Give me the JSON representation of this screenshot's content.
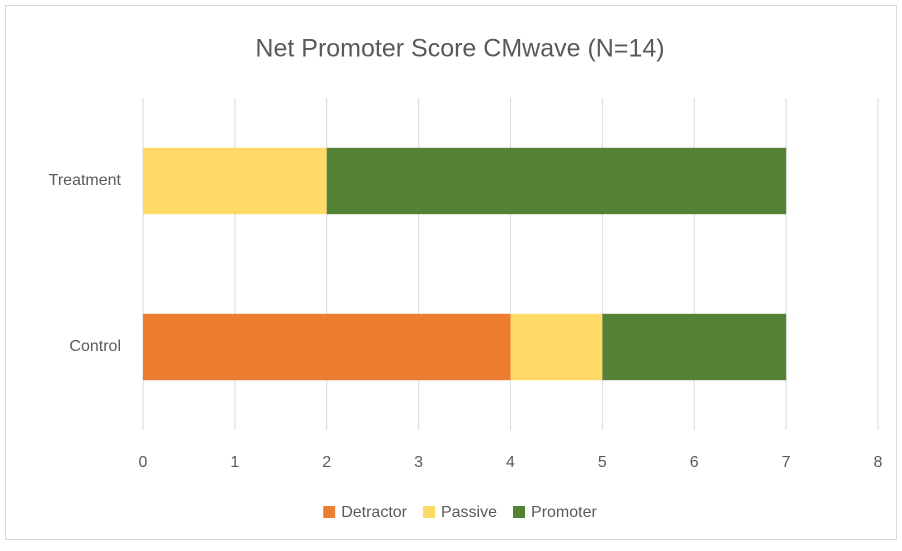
{
  "chart_data": {
    "type": "bar",
    "orientation": "horizontal",
    "stacked": true,
    "title": "Net Promoter Score CMwave (N=14)",
    "categories": [
      "Treatment",
      "Control"
    ],
    "series": [
      {
        "name": "Detractor",
        "color": "#ED7D31",
        "values": [
          0,
          4
        ]
      },
      {
        "name": "Passive",
        "color": "#FFD966",
        "values": [
          2,
          1
        ]
      },
      {
        "name": "Promoter",
        "color": "#548235",
        "values": [
          5,
          2
        ]
      }
    ],
    "xlim": [
      0,
      8
    ],
    "xticks": [
      0,
      1,
      2,
      3,
      4,
      5,
      6,
      7,
      8
    ],
    "grid": true,
    "legend": "bottom"
  }
}
